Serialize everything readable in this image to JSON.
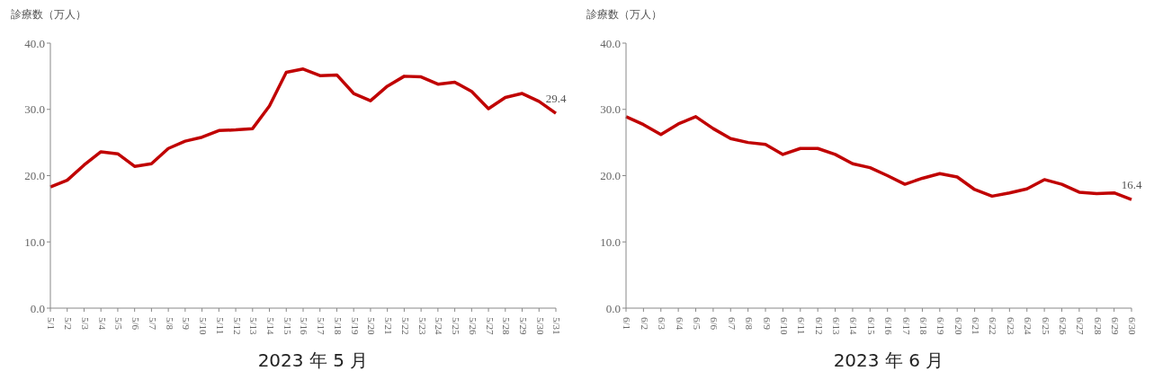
{
  "chart_data": [
    {
      "type": "line",
      "ylabel": "診療数（万人）",
      "xlabel": "2023 年 5 月",
      "categories": [
        "5/1",
        "5/2",
        "5/3",
        "5/4",
        "5/5",
        "5/6",
        "5/7",
        "5/8",
        "5/9",
        "5/10",
        "5/11",
        "5/12",
        "5/13",
        "5/14",
        "5/15",
        "5/16",
        "5/17",
        "5/18",
        "5/19",
        "5/20",
        "5/21",
        "5/22",
        "5/23",
        "5/24",
        "5/25",
        "5/26",
        "5/27",
        "5/28",
        "5/29",
        "5/30",
        "5/31"
      ],
      "series": [
        {
          "color": "#c00000",
          "values": [
            18.3,
            19.3,
            21.6,
            23.6,
            23.3,
            21.4,
            21.8,
            24.1,
            25.2,
            25.8,
            26.8,
            26.9,
            27.1,
            30.5,
            35.6,
            36.1,
            35.1,
            35.2,
            32.4,
            31.3,
            33.5,
            35.0,
            34.9,
            33.8,
            34.1,
            32.7,
            30.1,
            31.8,
            32.4,
            31.2,
            29.4
          ]
        }
      ],
      "ylim": [
        0,
        40
      ],
      "yticks": [
        {
          "value": 0,
          "label": "0.0"
        },
        {
          "value": 10,
          "label": "10.0"
        },
        {
          "value": 20,
          "label": "20.0"
        },
        {
          "value": 30,
          "label": "30.0"
        },
        {
          "value": 40,
          "label": "40.0"
        }
      ],
      "annotations": [
        {
          "text": "29.4",
          "x": "5/31",
          "y": 29.4
        }
      ],
      "grid": false,
      "legend": false,
      "marker": "none",
      "line_style": "solid"
    },
    {
      "type": "line",
      "ylabel": "診療数（万人）",
      "xlabel": "2023 年 6 月",
      "categories": [
        "6/1",
        "6/2",
        "6/3",
        "6/4",
        "6/5",
        "6/6",
        "6/7",
        "6/8",
        "6/9",
        "6/10",
        "6/11",
        "6/12",
        "6/13",
        "6/14",
        "6/15",
        "6/16",
        "6/17",
        "6/18",
        "6/19",
        "6/20",
        "6/21",
        "6/22",
        "6/23",
        "6/24",
        "6/25",
        "6/26",
        "6/27",
        "6/28",
        "6/29",
        "6/30"
      ],
      "series": [
        {
          "color": "#c00000",
          "values": [
            28.9,
            27.7,
            26.2,
            27.8,
            28.9,
            27.1,
            25.6,
            25.0,
            24.7,
            23.2,
            24.1,
            24.1,
            23.2,
            21.8,
            21.2,
            20.0,
            18.7,
            19.6,
            20.3,
            19.8,
            17.9,
            16.9,
            17.4,
            18.0,
            19.4,
            18.7,
            17.5,
            17.3,
            17.4,
            16.4
          ]
        }
      ],
      "ylim": [
        0,
        40
      ],
      "yticks": [
        {
          "value": 0,
          "label": "0.0"
        },
        {
          "value": 10,
          "label": "10.0"
        },
        {
          "value": 20,
          "label": "20.0"
        },
        {
          "value": 30,
          "label": "30.0"
        },
        {
          "value": 40,
          "label": "40.0"
        }
      ],
      "annotations": [
        {
          "text": "16.4",
          "x": "6/30",
          "y": 16.4
        }
      ],
      "grid": false,
      "legend": false,
      "marker": "none",
      "line_style": "solid"
    }
  ]
}
